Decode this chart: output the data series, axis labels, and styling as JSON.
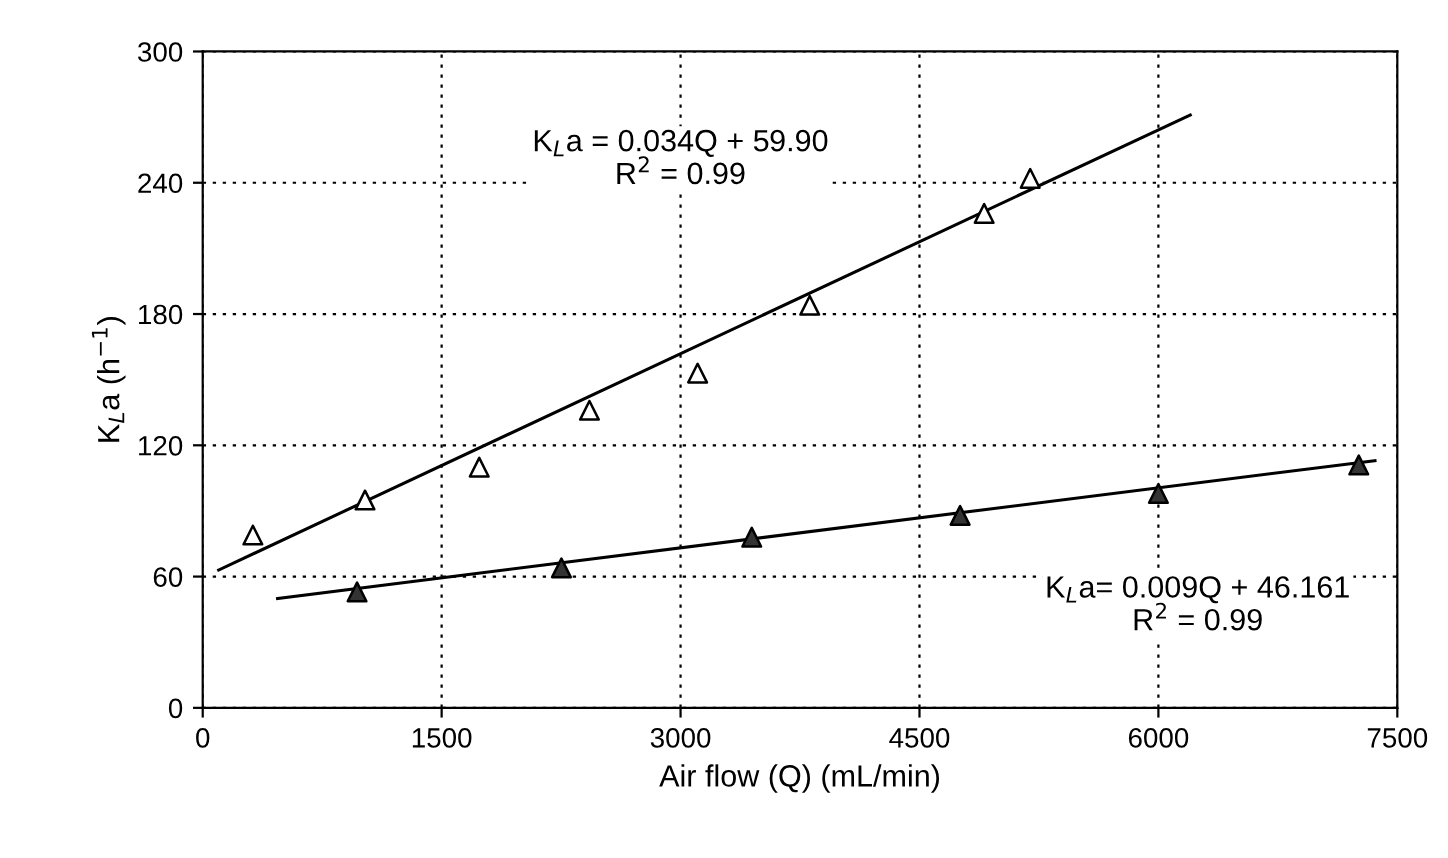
{
  "chart_data": {
    "type": "scatter",
    "xlabel": "Air flow (Q) (mL/min)",
    "ylabel": "K$_{L}$a (h$^{−1}$)",
    "xlim": [
      0,
      7500
    ],
    "xticks": [
      0,
      1500,
      3000,
      4500,
      6000,
      7500
    ],
    "ylim": [
      0,
      300
    ],
    "yticks": [
      0,
      60,
      120,
      180,
      240,
      300
    ],
    "grid": true,
    "legend": false,
    "marker": "triangle",
    "series": [
      {
        "color": "#ffffff",
        "x": [
          315,
          1019,
          1736,
          2428,
          3107,
          3811,
          4906,
          5195
        ],
        "values": [
          79,
          95,
          110,
          136,
          153,
          184,
          226,
          242
        ]
      },
      {
        "color": "#333333",
        "x": [
          969,
          2252,
          3447,
          4755,
          6000,
          7258
        ],
        "values": [
          53,
          64,
          78,
          88,
          98,
          111
        ]
      },
      {
        "type": "line",
        "color": "#000000",
        "marker": "none",
        "line_style": "solid",
        "x": [
          100,
          6200
        ],
        "values": [
          63,
          271
        ]
      },
      {
        "type": "line",
        "color": "#000000",
        "marker": "none",
        "line_style": "solid",
        "x": [
          470,
          7360
        ],
        "values": [
          50,
          113
        ]
      }
    ],
    "annotations": [
      "K$_{L}$a = 0.034Q + 59.90\nR$^{2}$ = 0.99",
      "K$_{L}$a= 0.009Q + 46.161\nR$^{2}$ = 0.99"
    ]
  }
}
